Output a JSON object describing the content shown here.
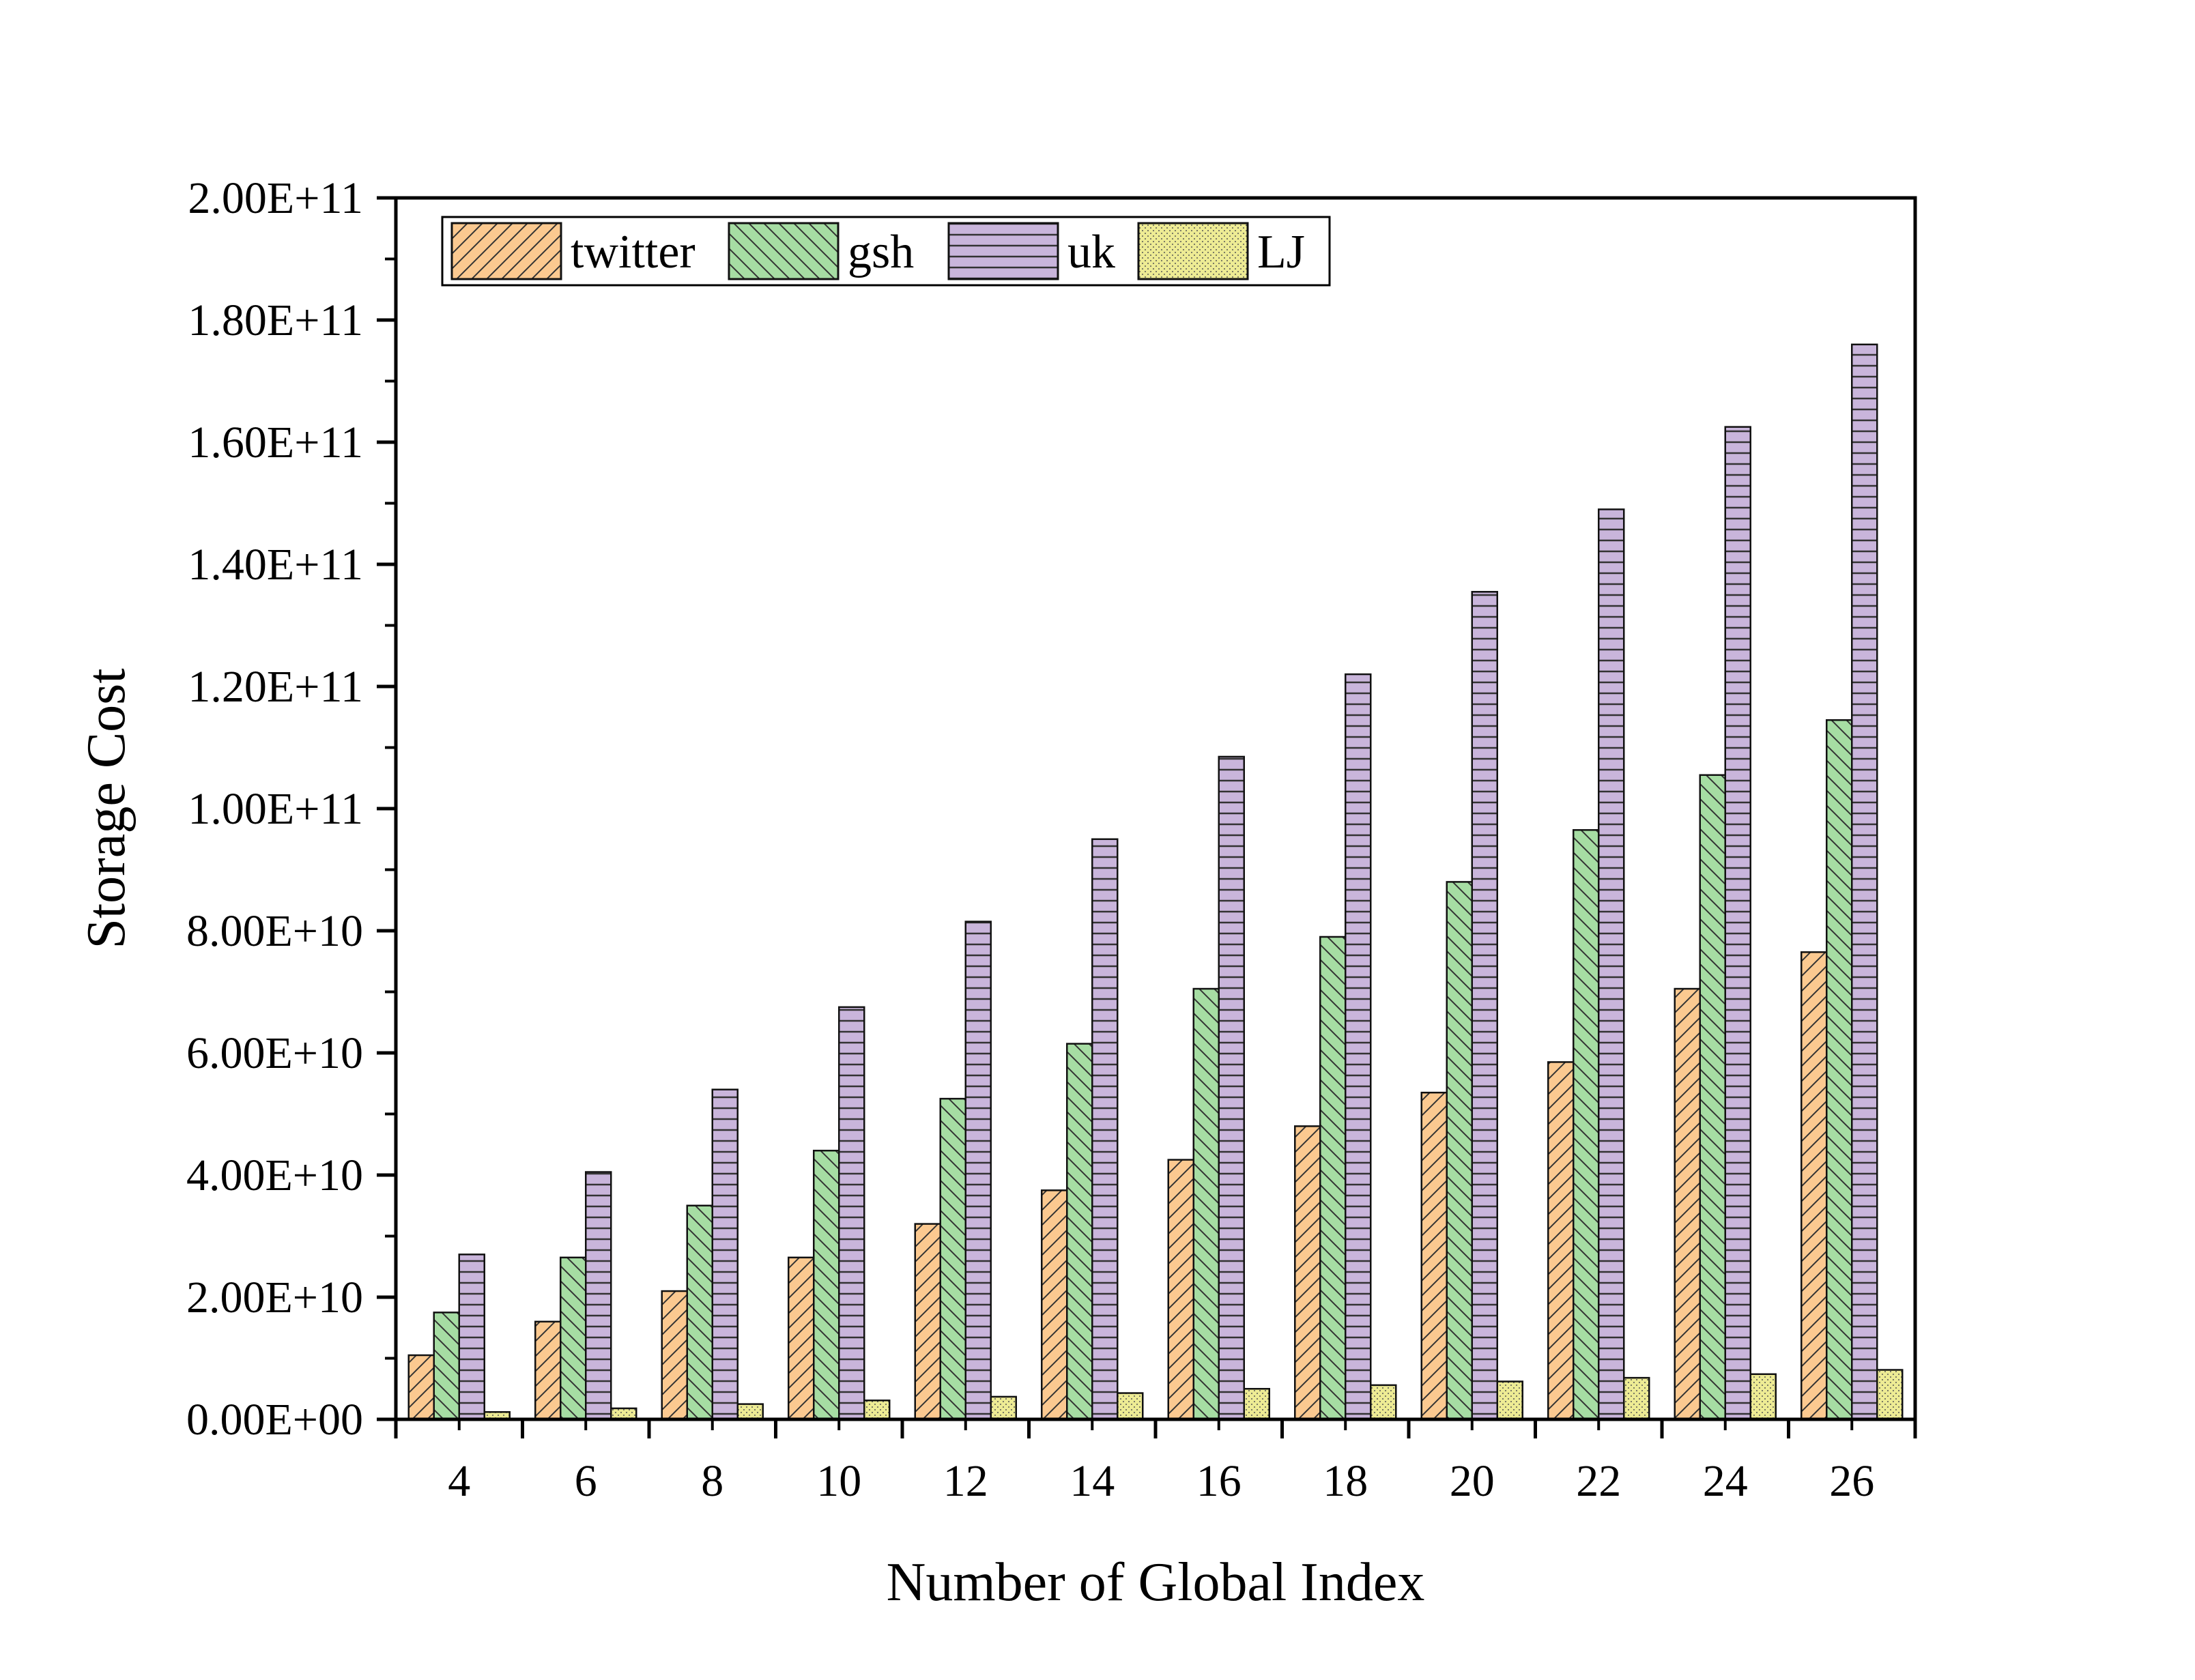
{
  "chart_data": {
    "type": "bar",
    "xlabel": "Number of Global Index",
    "ylabel": "Storage Cost",
    "categories": [
      "4",
      "6",
      "8",
      "10",
      "12",
      "14",
      "16",
      "18",
      "20",
      "22",
      "24",
      "26"
    ],
    "ylim": [
      0,
      200000000000
    ],
    "yticks": [
      0,
      20000000000,
      40000000000,
      60000000000,
      80000000000,
      100000000000,
      120000000000,
      140000000000,
      160000000000,
      180000000000,
      200000000000
    ],
    "ytick_labels": [
      "0.00E+00",
      "2.00E+10",
      "4.00E+10",
      "6.00E+10",
      "8.00E+10",
      "1.00E+11",
      "1.20E+11",
      "1.40E+11",
      "1.60E+11",
      "1.80E+11",
      "2.00E+11"
    ],
    "legend_position": "top-left",
    "grid": false,
    "series": [
      {
        "name": "twitter",
        "color": "#FBC990",
        "hatch": "forward-diagonal",
        "values": [
          10500000000,
          16000000000,
          21000000000,
          26500000000,
          32000000000,
          37500000000,
          42500000000,
          48000000000,
          53500000000,
          58500000000,
          70500000000,
          76500000000
        ]
      },
      {
        "name": "gsh",
        "color": "#A6DDA3",
        "hatch": "back-diagonal",
        "values": [
          17500000000,
          26500000000,
          35000000000,
          44000000000,
          52500000000,
          61500000000,
          70500000000,
          79000000000,
          88000000000,
          96500000000,
          105500000000,
          114500000000
        ]
      },
      {
        "name": "uk",
        "color": "#C9B5DB",
        "hatch": "horizontal",
        "values": [
          27000000000,
          40500000000,
          54000000000,
          67500000000,
          81500000000,
          95000000000,
          108500000000,
          122000000000,
          135500000000,
          149000000000,
          162500000000,
          176000000000
        ]
      },
      {
        "name": "LJ",
        "color": "#EDEB94",
        "hatch": "dots",
        "values": [
          1200000000,
          1800000000,
          2500000000,
          3100000000,
          3700000000,
          4300000000,
          5000000000,
          5600000000,
          6200000000,
          6800000000,
          7400000000,
          8100000000
        ]
      }
    ]
  }
}
